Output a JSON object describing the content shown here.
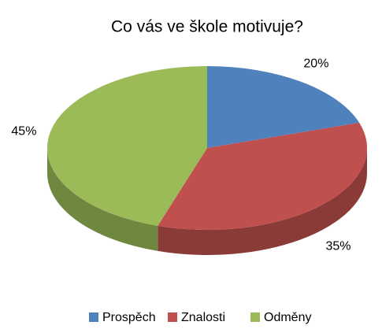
{
  "chart_data": {
    "type": "pie3d",
    "title": "Co vás ve škole motivuje?",
    "categories": [
      "Prospěch",
      "Znalosti",
      "Odměny"
    ],
    "values": [
      20,
      35,
      45
    ],
    "value_labels": [
      "20%",
      "35%",
      "45%"
    ],
    "colors": [
      "#4f81bd",
      "#c0504d",
      "#9bbb59"
    ],
    "legend": "bottom"
  }
}
